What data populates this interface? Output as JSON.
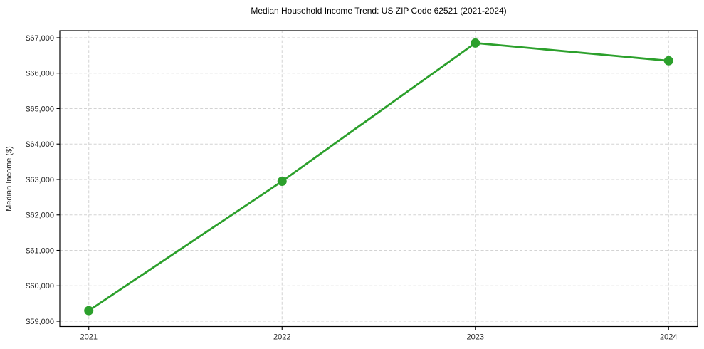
{
  "figure": {
    "background": "#ffffff"
  },
  "chart_data": {
    "type": "line",
    "title": "Median Household Income Trend: US ZIP Code 62521 (2021-2024)",
    "xlabel": "",
    "ylabel": "Median Income ($)",
    "x": [
      2021,
      2022,
      2023,
      2024
    ],
    "values": [
      59300,
      62950,
      66850,
      66350
    ],
    "xticks": [
      2021,
      2022,
      2023,
      2024
    ],
    "xtick_labels": [
      "2021",
      "2022",
      "2023",
      "2024"
    ],
    "yticks": [
      59000,
      60000,
      61000,
      62000,
      63000,
      64000,
      65000,
      66000,
      67000
    ],
    "ytick_labels": [
      "$59,000",
      "$60,000",
      "$61,000",
      "$62,000",
      "$63,000",
      "$64,000",
      "$65,000",
      "$66,000",
      "$67,000"
    ],
    "xlim": [
      2020.85,
      2024.15
    ],
    "ylim": [
      58850,
      67200
    ],
    "grid": true,
    "grid_style": "dashed",
    "legend": "none",
    "line_color": "#2ca02c",
    "marker": "circle"
  }
}
